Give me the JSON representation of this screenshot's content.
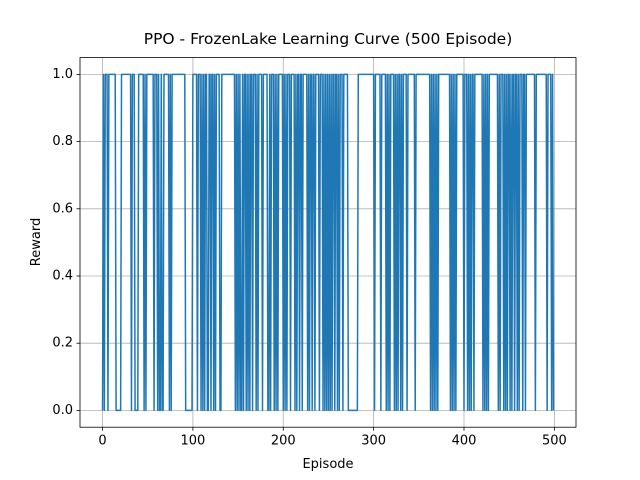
{
  "chart_data": {
    "type": "line",
    "title": "PPO - FrozenLake Learning Curve (500 Episode)",
    "x_label": "Episode",
    "y_label": "Reward",
    "color": "#1f77b4",
    "grid": true,
    "xlim": [
      -24.95,
      523.95
    ],
    "ylim": [
      -0.05,
      1.05
    ],
    "xticks": [
      0,
      100,
      200,
      300,
      400,
      500
    ],
    "yticks": [
      {
        "value": 0,
        "label": "0.0"
      },
      0.2,
      0.4,
      0.6,
      0.8,
      {
        "value": 1,
        "label": "1.0"
      }
    ],
    "x": [
      0,
      1,
      2,
      3,
      4,
      5,
      6,
      7,
      8,
      9,
      10,
      11,
      12,
      13,
      14,
      15,
      16,
      17,
      18,
      19,
      20,
      21,
      22,
      23,
      24,
      25,
      26,
      27,
      28,
      29,
      30,
      31,
      32,
      33,
      34,
      35,
      36,
      37,
      38,
      39,
      40,
      41,
      42,
      43,
      44,
      45,
      46,
      47,
      48,
      49,
      50,
      51,
      52,
      53,
      54,
      55,
      56,
      57,
      58,
      59,
      60,
      61,
      62,
      63,
      64,
      65,
      66,
      67,
      68,
      69,
      70,
      71,
      72,
      73,
      74,
      75,
      76,
      77,
      78,
      79,
      80,
      81,
      82,
      83,
      84,
      85,
      86,
      87,
      88,
      89,
      90,
      91,
      92,
      93,
      94,
      95,
      96,
      97,
      98,
      99,
      100,
      101,
      102,
      103,
      104,
      105,
      106,
      107,
      108,
      109,
      110,
      111,
      112,
      113,
      114,
      115,
      116,
      117,
      118,
      119,
      120,
      121,
      122,
      123,
      124,
      125,
      126,
      127,
      128,
      129,
      130,
      131,
      132,
      133,
      134,
      135,
      136,
      137,
      138,
      139,
      140,
      141,
      142,
      143,
      144,
      145,
      146,
      147,
      148,
      149,
      150,
      151,
      152,
      153,
      154,
      155,
      156,
      157,
      158,
      159,
      160,
      161,
      162,
      163,
      164,
      165,
      166,
      167,
      168,
      169,
      170,
      171,
      172,
      173,
      174,
      175,
      176,
      177,
      178,
      179,
      180,
      181,
      182,
      183,
      184,
      185,
      186,
      187,
      188,
      189,
      190,
      191,
      192,
      193,
      194,
      195,
      196,
      197,
      198,
      199,
      200,
      201,
      202,
      203,
      204,
      205,
      206,
      207,
      208,
      209,
      210,
      211,
      212,
      213,
      214,
      215,
      216,
      217,
      218,
      219,
      220,
      221,
      222,
      223,
      224,
      225,
      226,
      227,
      228,
      229,
      230,
      231,
      232,
      233,
      234,
      235,
      236,
      237,
      238,
      239,
      240,
      241,
      242,
      243,
      244,
      245,
      246,
      247,
      248,
      249,
      250,
      251,
      252,
      253,
      254,
      255,
      256,
      257,
      258,
      259,
      260,
      261,
      262,
      263,
      264,
      265,
      266,
      267,
      268,
      269,
      270,
      271,
      272,
      273,
      274,
      275,
      276,
      277,
      278,
      279,
      280,
      281,
      282,
      283,
      284,
      285,
      286,
      287,
      288,
      289,
      290,
      291,
      292,
      293,
      294,
      295,
      296,
      297,
      298,
      299,
      300,
      301,
      302,
      303,
      304,
      305,
      306,
      307,
      308,
      309,
      310,
      311,
      312,
      313,
      314,
      315,
      316,
      317,
      318,
      319,
      320,
      321,
      322,
      323,
      324,
      325,
      326,
      327,
      328,
      329,
      330,
      331,
      332,
      333,
      334,
      335,
      336,
      337,
      338,
      339,
      340,
      341,
      342,
      343,
      344,
      345,
      346,
      347,
      348,
      349,
      350,
      351,
      352,
      353,
      354,
      355,
      356,
      357,
      358,
      359,
      360,
      361,
      362,
      363,
      364,
      365,
      366,
      367,
      368,
      369,
      370,
      371,
      372,
      373,
      374,
      375,
      376,
      377,
      378,
      379,
      380,
      381,
      382,
      383,
      384,
      385,
      386,
      387,
      388,
      389,
      390,
      391,
      392,
      393,
      394,
      395,
      396,
      397,
      398,
      399,
      400,
      401,
      402,
      403,
      404,
      405,
      406,
      407,
      408,
      409,
      410,
      411,
      412,
      413,
      414,
      415,
      416,
      417,
      418,
      419,
      420,
      421,
      422,
      423,
      424,
      425,
      426,
      427,
      428,
      429,
      430,
      431,
      432,
      433,
      434,
      435,
      436,
      437,
      438,
      439,
      440,
      441,
      442,
      443,
      444,
      445,
      446,
      447,
      448,
      449,
      450,
      451,
      452,
      453,
      454,
      455,
      456,
      457,
      458,
      459,
      460,
      461,
      462,
      463,
      464,
      465,
      466,
      467,
      468,
      469,
      470,
      471,
      472,
      473,
      474,
      475,
      476,
      477,
      478,
      479,
      480,
      481,
      482,
      483,
      484,
      485,
      486,
      487,
      488,
      489,
      490,
      491,
      492,
      493,
      494,
      495,
      496,
      497,
      498,
      499
    ],
    "values": [
      0,
      1,
      0,
      1,
      1,
      1,
      0,
      1,
      1,
      1,
      1,
      1,
      1,
      1,
      1,
      0,
      0,
      0,
      0,
      0,
      0,
      1,
      1,
      1,
      1,
      1,
      1,
      1,
      1,
      1,
      1,
      1,
      0,
      1,
      1,
      1,
      0,
      0,
      0,
      0,
      1,
      1,
      1,
      1,
      1,
      1,
      0,
      1,
      0,
      1,
      1,
      1,
      1,
      1,
      1,
      1,
      1,
      0,
      1,
      1,
      1,
      0,
      1,
      0,
      0,
      1,
      0,
      0,
      1,
      1,
      1,
      1,
      1,
      1,
      0,
      1,
      0,
      1,
      1,
      1,
      1,
      1,
      1,
      1,
      1,
      1,
      1,
      1,
      1,
      1,
      1,
      1,
      0,
      0,
      0,
      0,
      0,
      0,
      0,
      0,
      1,
      1,
      1,
      1,
      1,
      0,
      1,
      1,
      1,
      0,
      1,
      0,
      1,
      0,
      1,
      1,
      0,
      0,
      1,
      1,
      0,
      1,
      1,
      0,
      1,
      0,
      1,
      1,
      1,
      1,
      0,
      0,
      1,
      1,
      1,
      1,
      1,
      1,
      1,
      1,
      1,
      1,
      1,
      1,
      1,
      1,
      1,
      0,
      1,
      0,
      1,
      0,
      1,
      0,
      0,
      1,
      0,
      1,
      1,
      0,
      1,
      0,
      1,
      0,
      1,
      1,
      0,
      1,
      1,
      1,
      0,
      1,
      0,
      1,
      1,
      1,
      1,
      0,
      1,
      1,
      1,
      1,
      1,
      0,
      0,
      1,
      0,
      1,
      1,
      1,
      0,
      1,
      0,
      1,
      0,
      1,
      1,
      1,
      1,
      1,
      0,
      1,
      0,
      1,
      0,
      1,
      1,
      1,
      0,
      1,
      1,
      1,
      1,
      0,
      1,
      0,
      1,
      1,
      0,
      1,
      1,
      0,
      1,
      1,
      1,
      1,
      1,
      0,
      1,
      0,
      1,
      1,
      0,
      1,
      1,
      0,
      1,
      1,
      1,
      1,
      0,
      1,
      1,
      1,
      0,
      1,
      0,
      1,
      0,
      1,
      0,
      1,
      0,
      1,
      0,
      1,
      1,
      0,
      1,
      1,
      0,
      1,
      0,
      1,
      1,
      1,
      0,
      1,
      1,
      1,
      1,
      1,
      0,
      0,
      0,
      0,
      0,
      0,
      0,
      0,
      0,
      0,
      0,
      1,
      1,
      1,
      1,
      1,
      1,
      1,
      1,
      1,
      1,
      1,
      1,
      1,
      1,
      1,
      1,
      1,
      1,
      0,
      1,
      1,
      1,
      1,
      1,
      1,
      0,
      1,
      1,
      1,
      1,
      1,
      0,
      1,
      0,
      1,
      0,
      1,
      1,
      1,
      1,
      0,
      1,
      0,
      1,
      0,
      1,
      1,
      0,
      1,
      0,
      1,
      1,
      1,
      1,
      0,
      1,
      1,
      1,
      1,
      1,
      1,
      1,
      1,
      0,
      1,
      1,
      1,
      1,
      1,
      1,
      1,
      1,
      1,
      1,
      1,
      1,
      1,
      1,
      1,
      1,
      0,
      1,
      0,
      1,
      0,
      1,
      0,
      1,
      0,
      1,
      1,
      1,
      1,
      1,
      1,
      1,
      1,
      1,
      1,
      1,
      1,
      1,
      0,
      1,
      0,
      1,
      0,
      1,
      0,
      1,
      1,
      1,
      1,
      1,
      1,
      1,
      1,
      0,
      1,
      1,
      1,
      0,
      1,
      0,
      1,
      0,
      1,
      1,
      0,
      1,
      1,
      1,
      1,
      1,
      1,
      1,
      1,
      1,
      0,
      1,
      0,
      1,
      0,
      1,
      0,
      1,
      1,
      1,
      1,
      1,
      1,
      1,
      1,
      1,
      1,
      0,
      1,
      0,
      1,
      1,
      1,
      0,
      1,
      0,
      1,
      0,
      1,
      1,
      0,
      1,
      0,
      1,
      1,
      0,
      1,
      1,
      0,
      1,
      0,
      1,
      1,
      1,
      0,
      1,
      1,
      0,
      1,
      1,
      1,
      1,
      1,
      1,
      1,
      1,
      1,
      1,
      0,
      1,
      1,
      1,
      1,
      1,
      1,
      1,
      1,
      1,
      1,
      1,
      1,
      0,
      1,
      1,
      1,
      1,
      0,
      1,
      0
    ]
  }
}
